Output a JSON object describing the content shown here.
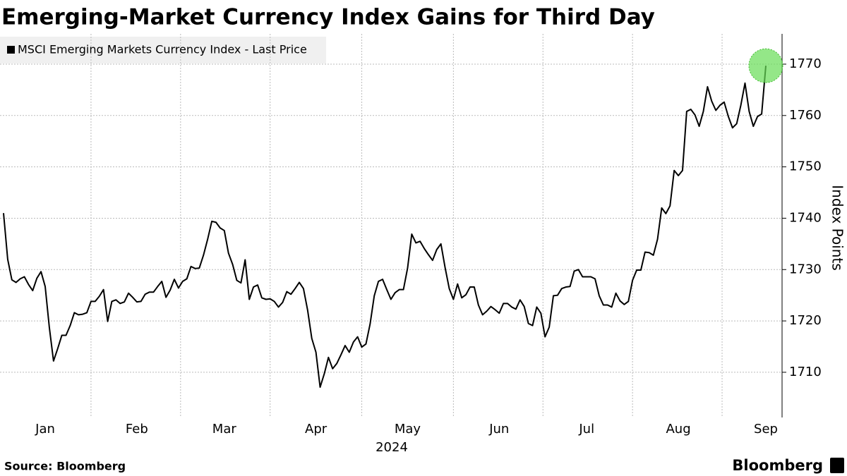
{
  "chart_data": {
    "type": "line",
    "title": "Emerging-Market Currency Index Gains for Third Day",
    "y_label": "Index Points",
    "x_label": "2024",
    "source": "Source: Bloomberg",
    "brand": "Bloomberg",
    "ylim": [
      1701.2,
      1775.9
    ],
    "yticks": [
      1710,
      1720,
      1730,
      1740,
      1750,
      1760,
      1770
    ],
    "grid": true,
    "legend": "upper left",
    "categories": [
      null,
      null,
      null,
      null,
      null,
      null,
      null,
      null,
      null,
      null,
      "Jan",
      null,
      null,
      null,
      null,
      null,
      null,
      null,
      null,
      null,
      null,
      null,
      null,
      null,
      null,
      null,
      null,
      null,
      null,
      null,
      null,
      null,
      "Feb",
      null,
      null,
      null,
      null,
      null,
      null,
      null,
      null,
      null,
      null,
      null,
      null,
      null,
      null,
      null,
      null,
      null,
      null,
      null,
      null,
      "Mar",
      null,
      null,
      null,
      null,
      null,
      null,
      null,
      null,
      null,
      null,
      null,
      null,
      null,
      null,
      null,
      null,
      null,
      null,
      null,
      null,
      null,
      "Apr",
      null,
      null,
      null,
      null,
      null,
      null,
      null,
      null,
      null,
      null,
      null,
      null,
      null,
      null,
      null,
      null,
      null,
      null,
      null,
      null,
      null,
      "May",
      null,
      null,
      null,
      null,
      null,
      null,
      null,
      null,
      null,
      null,
      null,
      null,
      null,
      null,
      null,
      null,
      null,
      null,
      null,
      null,
      null,
      "Jun",
      null,
      null,
      null,
      null,
      null,
      null,
      null,
      null,
      null,
      null,
      null,
      null,
      null,
      null,
      null,
      null,
      null,
      null,
      null,
      null,
      "Jul",
      null,
      null,
      null,
      null,
      null,
      null,
      null,
      null,
      null,
      null,
      null,
      null,
      null,
      null,
      null,
      null,
      null,
      null,
      null,
      null,
      null,
      "Aug",
      null,
      null,
      null,
      null,
      null,
      null,
      null,
      null,
      null,
      null,
      null,
      null,
      null,
      null,
      null,
      null,
      null,
      null,
      null,
      null,
      "Sep"
    ],
    "series": [
      {
        "name": "MSCI Emerging Markets Currency Index - Last Price",
        "color": "#000000",
        "values": [
          1741.0,
          1732.0,
          1728.0,
          1727.5,
          1728.2,
          1728.6,
          1727.1,
          1725.9,
          1728.3,
          1729.6,
          1726.7,
          1718.7,
          1712.2,
          1714.6,
          1717.2,
          1717.2,
          1719.1,
          1721.6,
          1721.2,
          1721.3,
          1721.6,
          1723.8,
          1723.8,
          1724.8,
          1726.1,
          1719.9,
          1723.8,
          1724.1,
          1723.4,
          1723.7,
          1725.4,
          1724.6,
          1723.7,
          1723.8,
          1725.2,
          1725.6,
          1725.6,
          1726.7,
          1727.7,
          1724.6,
          1726.0,
          1728.1,
          1726.4,
          1727.7,
          1728.2,
          1730.6,
          1730.2,
          1730.3,
          1732.8,
          1735.9,
          1739.4,
          1739.2,
          1738.1,
          1737.6,
          1733.2,
          1731.0,
          1727.9,
          1727.4,
          1731.9,
          1724.2,
          1726.6,
          1727.0,
          1724.5,
          1724.2,
          1724.3,
          1723.8,
          1722.7,
          1723.6,
          1725.7,
          1725.2,
          1726.3,
          1727.5,
          1726.3,
          1722.1,
          1716.6,
          1713.9,
          1707.1,
          1709.7,
          1712.9,
          1710.7,
          1711.7,
          1713.4,
          1715.2,
          1713.9,
          1715.9,
          1716.9,
          1714.9,
          1715.5,
          1719.4,
          1724.9,
          1727.7,
          1728.1,
          1726.1,
          1724.2,
          1725.5,
          1726.1,
          1726.1,
          1730.3,
          1736.9,
          1735.2,
          1735.5,
          1734.1,
          1732.9,
          1731.8,
          1733.9,
          1735.0,
          1730.4,
          1726.3,
          1724.2,
          1727.2,
          1724.5,
          1725.1,
          1726.6,
          1726.6,
          1723.1,
          1721.2,
          1721.9,
          1722.8,
          1722.2,
          1721.5,
          1723.4,
          1723.4,
          1722.7,
          1722.3,
          1724.1,
          1722.8,
          1719.5,
          1719.1,
          1722.7,
          1721.5,
          1716.9,
          1718.8,
          1724.9,
          1725.0,
          1726.3,
          1726.6,
          1726.7,
          1729.7,
          1730.0,
          1728.6,
          1728.6,
          1728.6,
          1728.2,
          1724.9,
          1723.1,
          1723.1,
          1722.7,
          1725.4,
          1723.9,
          1723.2,
          1723.8,
          1727.9,
          1729.9,
          1729.9,
          1733.4,
          1733.3,
          1732.8,
          1735.9,
          1742.0,
          1740.9,
          1742.4,
          1749.3,
          1748.3,
          1749.3,
          1760.8,
          1761.2,
          1760.1,
          1757.9,
          1760.8,
          1765.6,
          1762.8,
          1761.0,
          1762.0,
          1762.6,
          1759.8,
          1757.6,
          1758.4,
          1762.0,
          1766.3,
          1760.8,
          1757.9,
          1759.8,
          1760.3,
          1769.7
        ]
      }
    ]
  }
}
